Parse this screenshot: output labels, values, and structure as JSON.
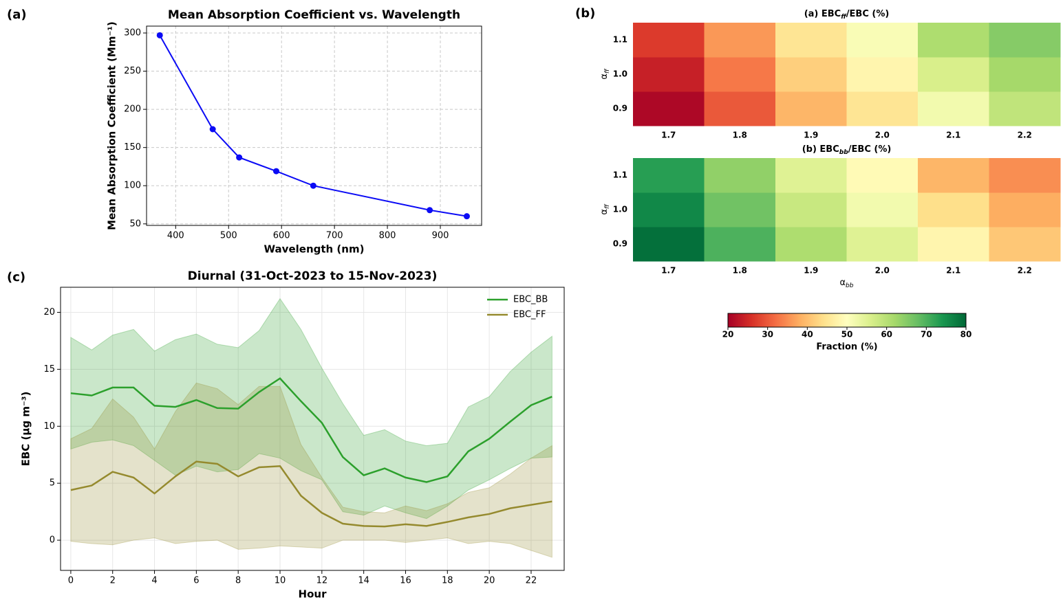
{
  "panels": [
    "(a)",
    "(b)",
    "(c)"
  ],
  "colorbar": {
    "colormap": "RdYlGn",
    "lim": [
      20,
      80
    ],
    "ticks": [
      20,
      30,
      40,
      50,
      60,
      70,
      80
    ],
    "label": "Fraction (%)"
  },
  "chart_data": [
    {
      "type": "line",
      "title": "Mean Absorption Coefficient vs. Wavelength",
      "x_label": "Wavelength (nm)",
      "y_label": "Mean Absorption Coefficient (Mm⁻¹)",
      "x": [
        370,
        470,
        520,
        590,
        660,
        880,
        950
      ],
      "series": [
        {
          "color": "#0b0bf5",
          "values": [
            297,
            174,
            137,
            119,
            100,
            68,
            60
          ]
        }
      ],
      "xlim": [
        345,
        978
      ],
      "ylim": [
        48,
        309
      ],
      "xticks": [
        400,
        500,
        600,
        700,
        800,
        900
      ],
      "yticks": [
        50,
        100,
        150,
        200,
        250,
        300
      ],
      "grid": "dashed"
    },
    {
      "type": "heatmap",
      "title": [
        "(a) EBC",
        "ff",
        "/EBC (%)"
      ],
      "y_label": [
        "α",
        "ff"
      ],
      "x": [
        "1.7",
        "1.8",
        "1.9",
        "2.0",
        "2.1",
        "2.2"
      ],
      "y": [
        "0.9",
        "1.0",
        "1.1"
      ],
      "values": [
        [
          21,
          30,
          39,
          45,
          52,
          59
        ],
        [
          24,
          33,
          42,
          48,
          56,
          62
        ],
        [
          27,
          36,
          45,
          51,
          61,
          65
        ]
      ]
    },
    {
      "type": "heatmap",
      "title": [
        "(b) EBC",
        "bb",
        "/EBC (%)"
      ],
      "y_label": [
        "α",
        "ff"
      ],
      "x_label": [
        "α",
        "bb"
      ],
      "x": [
        "1.7",
        "1.8",
        "1.9",
        "2.0",
        "2.1",
        "2.2"
      ],
      "y": [
        "0.9",
        "1.0",
        "1.1"
      ],
      "values": [
        [
          79,
          70,
          61,
          55,
          48,
          41
        ],
        [
          76,
          67,
          58,
          52,
          44,
          38
        ],
        [
          73,
          64,
          55,
          49,
          39,
          35
        ]
      ]
    },
    {
      "type": "band",
      "title": "Diurnal (31-Oct-2023 to 15-Nov-2023)",
      "x_label": "Hour",
      "y_label": "EBC (μg m⁻³)",
      "x": [
        0,
        1,
        2,
        3,
        4,
        5,
        6,
        7,
        8,
        9,
        10,
        11,
        12,
        13,
        14,
        15,
        16,
        17,
        18,
        19,
        20,
        21,
        22,
        23
      ],
      "series": [
        {
          "name": "EBC_BB",
          "color": "#2ca02c",
          "values": [
            12.9,
            12.7,
            13.4,
            13.4,
            11.8,
            11.7,
            12.3,
            11.6,
            11.55,
            13.0,
            14.2,
            12.2,
            10.3,
            7.3,
            5.7,
            6.3,
            5.5,
            5.1,
            5.6,
            7.8,
            8.9,
            10.4,
            11.85,
            12.6
          ],
          "upper": [
            17.8,
            16.7,
            18.0,
            18.5,
            16.6,
            17.6,
            18.1,
            17.2,
            16.9,
            18.4,
            21.2,
            18.5,
            15.1,
            12.0,
            9.2,
            9.7,
            8.7,
            8.3,
            8.5,
            11.7,
            12.6,
            14.8,
            16.5,
            17.9
          ],
          "lower": [
            8.0,
            8.6,
            8.8,
            8.3,
            7.0,
            5.7,
            6.5,
            6.0,
            6.2,
            7.6,
            7.2,
            6.1,
            5.3,
            2.5,
            2.2,
            3.0,
            2.4,
            1.9,
            3.0,
            4.4,
            5.3,
            6.3,
            7.2,
            7.3
          ]
        },
        {
          "name": "EBC_FF",
          "color": "#958a2e",
          "values": [
            4.4,
            4.8,
            6.0,
            5.5,
            4.1,
            5.6,
            6.9,
            6.7,
            5.6,
            6.4,
            6.5,
            3.9,
            2.4,
            1.45,
            1.25,
            1.2,
            1.4,
            1.25,
            1.6,
            2.0,
            2.3,
            2.8,
            3.1,
            3.4
          ],
          "upper": [
            8.9,
            9.8,
            12.4,
            10.8,
            8.0,
            11.3,
            13.8,
            13.3,
            11.9,
            13.5,
            13.5,
            8.4,
            5.5,
            2.9,
            2.5,
            2.4,
            3.0,
            2.6,
            3.2,
            4.2,
            4.6,
            5.8,
            7.2,
            8.3
          ],
          "lower": [
            -0.1,
            -0.3,
            -0.4,
            0.0,
            0.2,
            -0.3,
            -0.1,
            0.0,
            -0.8,
            -0.7,
            -0.5,
            -0.6,
            -0.7,
            0.0,
            0.0,
            0.0,
            -0.2,
            0.0,
            0.2,
            -0.3,
            -0.1,
            -0.3,
            -0.9,
            -1.5
          ]
        }
      ],
      "xlim": [
        -0.49,
        23.58
      ],
      "ylim": [
        -2.65,
        22.2
      ],
      "xticks": [
        0,
        2,
        4,
        6,
        8,
        10,
        12,
        14,
        16,
        18,
        20,
        22
      ],
      "yticks": [
        0,
        5,
        10,
        15,
        20
      ],
      "grid": "solid",
      "legend": "upper right"
    }
  ]
}
